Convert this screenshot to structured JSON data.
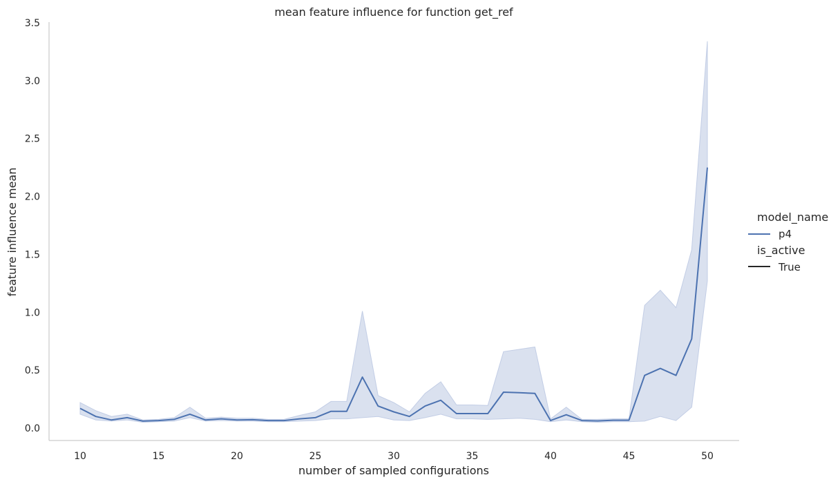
{
  "chart_data": {
    "type": "line",
    "title": "mean feature influence for function get_ref",
    "xlabel": "number of sampled configurations",
    "ylabel": "feature influence mean",
    "xlim": [
      8,
      52
    ],
    "ylim": [
      -0.1,
      3.5
    ],
    "x_ticks": [
      10,
      15,
      20,
      25,
      30,
      35,
      40,
      45,
      50
    ],
    "y_ticks": [
      0.0,
      0.5,
      1.0,
      1.5,
      2.0,
      2.5,
      3.0,
      3.5
    ],
    "grid": false,
    "legend": {
      "placement": "right",
      "groups": [
        {
          "title": "model_name",
          "entries": [
            {
              "label": "p4",
              "color": "#4c72b0"
            }
          ]
        },
        {
          "title": "is_active",
          "entries": [
            {
              "label": "True",
              "color": "#262626"
            }
          ]
        }
      ]
    },
    "series": [
      {
        "name": "p4",
        "color": "#4c72b0",
        "band_color": "#c2cde5",
        "x": [
          10,
          11,
          12,
          13,
          14,
          15,
          16,
          17,
          18,
          19,
          20,
          21,
          22,
          23,
          24,
          25,
          26,
          27,
          28,
          29,
          30,
          31,
          32,
          33,
          34,
          35,
          36,
          37,
          38,
          39,
          40,
          41,
          42,
          43,
          44,
          45,
          46,
          47,
          48,
          49,
          50
        ],
        "y": [
          0.17,
          0.1,
          0.07,
          0.09,
          0.06,
          0.065,
          0.075,
          0.12,
          0.07,
          0.08,
          0.07,
          0.072,
          0.065,
          0.065,
          0.08,
          0.09,
          0.145,
          0.145,
          0.44,
          0.19,
          0.14,
          0.1,
          0.19,
          0.24,
          0.125,
          0.125,
          0.125,
          0.31,
          0.305,
          0.3,
          0.065,
          0.115,
          0.065,
          0.062,
          0.068,
          0.068,
          0.455,
          0.515,
          0.455,
          0.77,
          2.25
        ],
        "ci_low": [
          0.12,
          0.07,
          0.06,
          0.07,
          0.05,
          0.055,
          0.06,
          0.09,
          0.06,
          0.065,
          0.06,
          0.06,
          0.055,
          0.055,
          0.06,
          0.065,
          0.08,
          0.08,
          0.09,
          0.1,
          0.07,
          0.065,
          0.09,
          0.12,
          0.08,
          0.08,
          0.075,
          0.08,
          0.085,
          0.075,
          0.055,
          0.07,
          0.055,
          0.05,
          0.055,
          0.055,
          0.06,
          0.1,
          0.065,
          0.18,
          1.27
        ],
        "ci_high": [
          0.22,
          0.15,
          0.1,
          0.12,
          0.07,
          0.075,
          0.09,
          0.18,
          0.085,
          0.095,
          0.085,
          0.085,
          0.075,
          0.075,
          0.11,
          0.14,
          0.23,
          0.23,
          1.01,
          0.28,
          0.22,
          0.14,
          0.3,
          0.4,
          0.2,
          0.2,
          0.195,
          0.66,
          0.68,
          0.7,
          0.08,
          0.18,
          0.075,
          0.075,
          0.08,
          0.08,
          1.06,
          1.19,
          1.04,
          1.54,
          3.34
        ]
      }
    ]
  }
}
